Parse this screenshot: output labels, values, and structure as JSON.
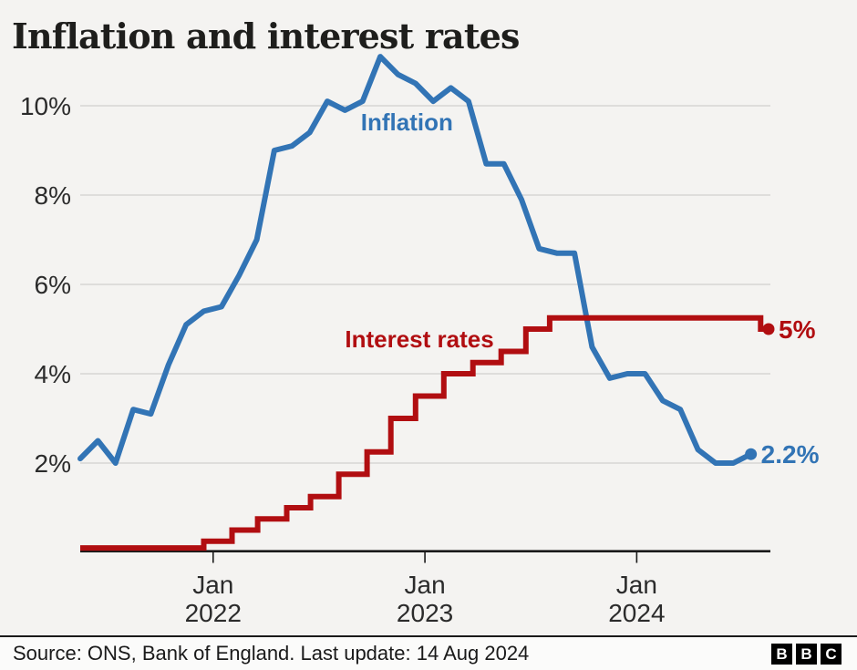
{
  "title": "Inflation and interest rates",
  "colors": {
    "inflation": "#3274b5",
    "interest_rates": "#b10e11",
    "grid": "#d0d0ce",
    "axis": "#1a1a1a",
    "tick_text": "#2b2b2b",
    "background": "#f4f3f1"
  },
  "chart_data": {
    "type": "line",
    "title": "Inflation and interest rates",
    "grid": "horizontal-only",
    "x_axis": {
      "unit": "month",
      "x_encoding": "months since May 2021",
      "start": "May 2021",
      "end": "Aug 2024",
      "ticks": [
        {
          "t": 7.53,
          "lines": [
            "Jan",
            "2022"
          ]
        },
        {
          "t": 19.53,
          "lines": [
            "Jan",
            "2023"
          ]
        },
        {
          "t": 31.53,
          "lines": [
            "Jan",
            "2024"
          ]
        }
      ]
    },
    "y_axis": {
      "unit": "percent",
      "range": [
        0,
        11.4
      ],
      "ticks": [
        {
          "v": 2,
          "label": "2%"
        },
        {
          "v": 4,
          "label": "4%"
        },
        {
          "v": 6,
          "label": "6%"
        },
        {
          "v": 8,
          "label": "8%"
        },
        {
          "v": 10,
          "label": "10%"
        }
      ]
    },
    "series": [
      {
        "name": "Inflation",
        "label": "Inflation",
        "color": "#3274b5",
        "style": "linear",
        "cadence": "monthly, May 2021 to Jul 2024",
        "end_dot": true,
        "end_label": "2.2%",
        "label_at": {
          "t": 15.9,
          "v": 9.45
        },
        "points": [
          [
            0,
            2.1
          ],
          [
            1,
            2.5
          ],
          [
            2,
            2.0
          ],
          [
            3,
            3.2
          ],
          [
            4,
            3.1
          ],
          [
            5,
            4.2
          ],
          [
            6,
            5.1
          ],
          [
            7,
            5.4
          ],
          [
            8,
            5.5
          ],
          [
            9,
            6.2
          ],
          [
            10,
            7.0
          ],
          [
            11,
            9.0
          ],
          [
            12,
            9.1
          ],
          [
            13,
            9.4
          ],
          [
            14,
            10.1
          ],
          [
            15,
            9.9
          ],
          [
            16,
            10.1
          ],
          [
            17,
            11.1
          ],
          [
            18,
            10.7
          ],
          [
            19,
            10.5
          ],
          [
            20,
            10.1
          ],
          [
            21,
            10.4
          ],
          [
            22,
            10.1
          ],
          [
            23,
            8.7
          ],
          [
            24,
            8.7
          ],
          [
            25,
            7.9
          ],
          [
            26,
            6.8
          ],
          [
            27,
            6.7
          ],
          [
            28,
            6.7
          ],
          [
            29,
            4.6
          ],
          [
            30,
            3.9
          ],
          [
            31,
            4.0
          ],
          [
            32,
            4.0
          ],
          [
            33,
            3.4
          ],
          [
            34,
            3.2
          ],
          [
            35,
            2.3
          ],
          [
            36,
            2.0
          ],
          [
            37,
            2.0
          ],
          [
            38,
            2.2
          ]
        ]
      },
      {
        "name": "Interest rates",
        "label": "Interest rates",
        "color": "#b10e11",
        "style": "step",
        "cadence": "Bank rate level, May 2021 to Aug 2024",
        "end_dot": true,
        "end_label": "5%",
        "label_at": {
          "t": 15.0,
          "v": 4.59
        },
        "points": [
          [
            0,
            0.1
          ],
          [
            7.0,
            0.25
          ],
          [
            8.6,
            0.5
          ],
          [
            10.05,
            0.75
          ],
          [
            11.7,
            1.0
          ],
          [
            13.05,
            1.25
          ],
          [
            14.65,
            1.75
          ],
          [
            16.25,
            2.25
          ],
          [
            17.6,
            3.0
          ],
          [
            19.0,
            3.5
          ],
          [
            20.6,
            4.0
          ],
          [
            22.25,
            4.25
          ],
          [
            23.85,
            4.5
          ],
          [
            25.25,
            5.0
          ],
          [
            26.6,
            5.25
          ],
          [
            38.55,
            5.0
          ],
          [
            39,
            5.0
          ]
        ]
      }
    ]
  },
  "footer": {
    "source": "Source: ONS, Bank of England. Last update: 14 Aug 2024",
    "logo": [
      "B",
      "B",
      "C"
    ]
  }
}
